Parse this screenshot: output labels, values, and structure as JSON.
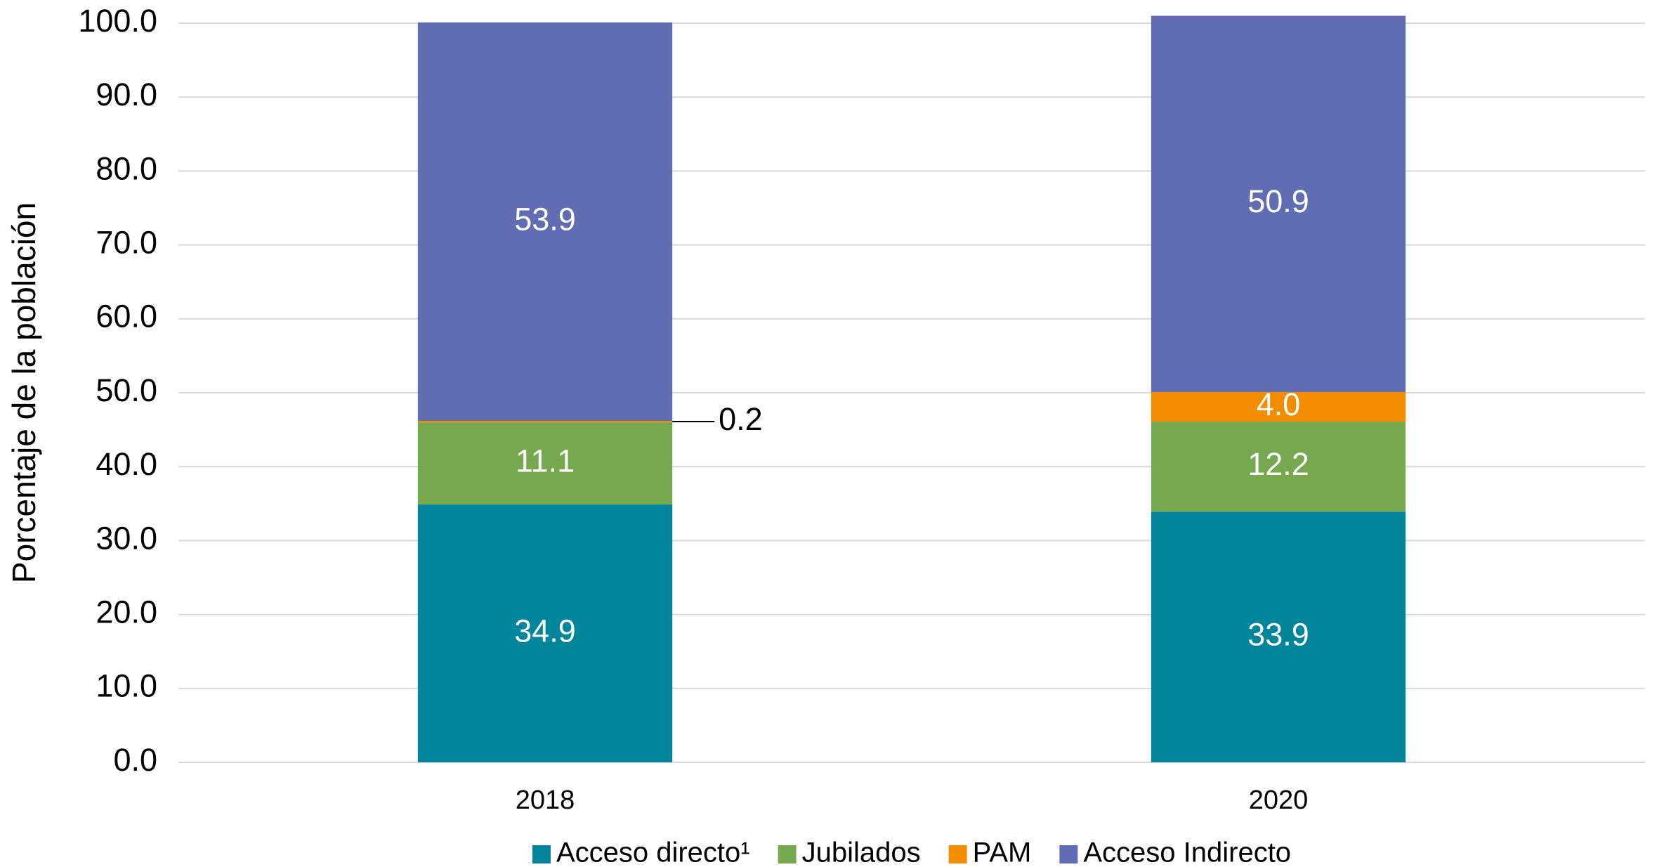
{
  "chart_data": {
    "type": "bar",
    "stacked": true,
    "y_label": "Porcentaje de la población",
    "categories": [
      "2018",
      "2020"
    ],
    "series": [
      {
        "name": "Acceso directo¹",
        "color": "#00859b",
        "values": [
          34.9,
          33.9
        ]
      },
      {
        "name": "Jubilados",
        "color": "#76a84f",
        "values": [
          11.1,
          12.2
        ]
      },
      {
        "name": "PAM",
        "color": "#f28c00",
        "values": [
          0.2,
          4.0
        ],
        "value_labels": [
          "0.2",
          "4.0"
        ]
      },
      {
        "name": "Acceso Indirecto",
        "color": "#606db3",
        "values": [
          53.9,
          50.9
        ]
      }
    ],
    "ylim": [
      0,
      100
    ],
    "yticks": [
      {
        "value": 0,
        "label": "0.0"
      },
      {
        "value": 10,
        "label": "10.0"
      },
      {
        "value": 20,
        "label": "20.0"
      },
      {
        "value": 30,
        "label": "30.0"
      },
      {
        "value": 40,
        "label": "40.0"
      },
      {
        "value": 50,
        "label": "50.0"
      },
      {
        "value": 60,
        "label": "60.0"
      },
      {
        "value": 70,
        "label": "70.0"
      },
      {
        "value": 80,
        "label": "80.0"
      },
      {
        "value": 90,
        "label": "90.0"
      },
      {
        "value": 100,
        "label": "100.0"
      }
    ],
    "grid": true,
    "legend": "bottom"
  }
}
